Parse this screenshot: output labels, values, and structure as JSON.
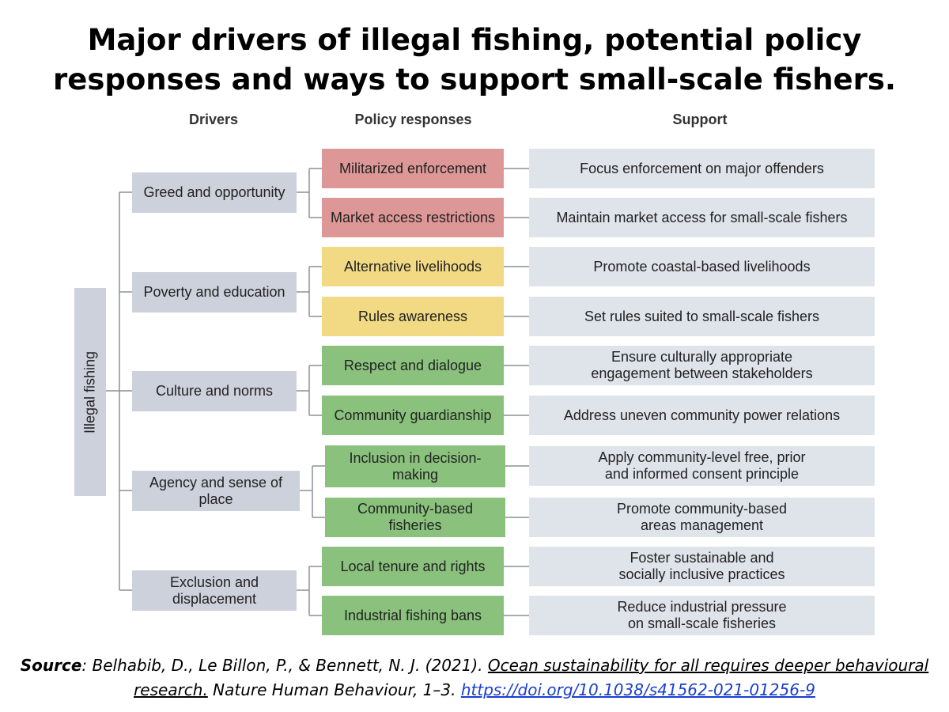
{
  "title": {
    "line1": "Major drivers of illegal fishing, potential policy",
    "line2": "responses and ways to support small-scale fishers."
  },
  "headers": {
    "drivers": "Drivers",
    "policy": "Policy responses",
    "support": "Support"
  },
  "root": "Illegal fishing",
  "drivers": [
    "Greed and opportunity",
    "Poverty and education",
    "Culture and norms",
    "Agency and sense of place",
    "Exclusion and displacement"
  ],
  "policies": [
    "Militarized enforcement",
    "Market access restrictions",
    "Alternative livelihoods",
    "Rules awareness",
    "Respect and dialogue",
    "Community guardianship",
    "Inclusion in decision-making",
    "Community-based fisheries",
    "Local tenure and rights",
    "Industrial fishing bans"
  ],
  "supports": [
    "Focus enforcement on major offenders",
    "Maintain market access for small-scale fishers",
    "Promote coastal-based livelihoods",
    "Set rules suited to small-scale fishers",
    "Ensure culturally appropriate engagement between stakeholders",
    "Address uneven community power relations",
    "Apply community-level free, prior and informed consent principle",
    "Promote community-based areas management",
    "Foster sustainable and socially inclusive practices",
    "Reduce industrial pressure on small-scale fisheries"
  ],
  "colors": {
    "driver": "#cdd1dc",
    "support": "#dfe3ea",
    "enforcement": "#de9797",
    "livelihood": "#f2d983",
    "community": "#8ac27d",
    "line": "#8a8f99"
  },
  "source": {
    "label": "Source",
    "authors": ": Belhabib, D., Le Billon, P., & Bennett, N. J. (2021). ",
    "article": "Ocean sustainability for all requires deeper behavioural research.",
    "journal": " Nature Human Behaviour, 1–3. ",
    "doi": "https://doi.org/10.1038/s41562-021-01256-9"
  }
}
